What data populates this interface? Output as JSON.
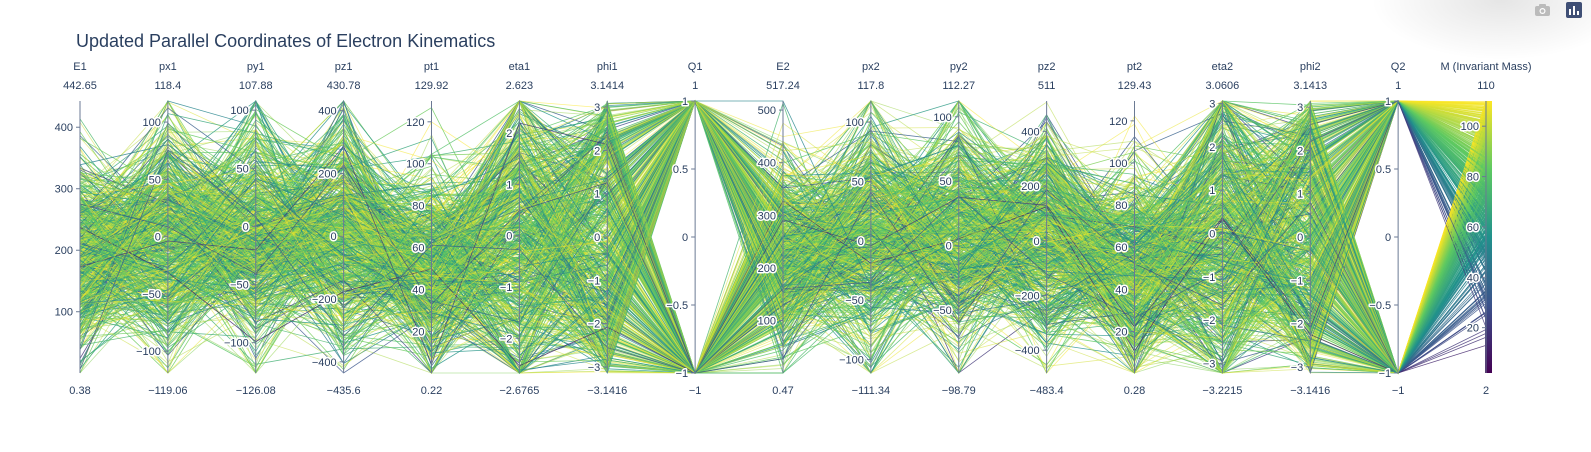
{
  "title": "Updated Parallel Coordinates of Electron Kinematics",
  "modebar": {
    "camera_icon": "camera-icon",
    "logo_icon": "plotly-logo-icon"
  },
  "colorscale": [
    "#440154",
    "#3b528b",
    "#21918c",
    "#5ec962",
    "#fde725"
  ],
  "chart_data": {
    "type": "parallel_coordinates",
    "color_by": "M (Invariant Mass)",
    "dimensions": [
      {
        "label": "E1",
        "range": [
          0.38,
          442.65
        ],
        "ticks": [
          100,
          200,
          300,
          400
        ],
        "min_label": "0.38",
        "max_label": "442.65"
      },
      {
        "label": "px1",
        "range": [
          -119.06,
          118.4
        ],
        "ticks": [
          -100,
          -50,
          0,
          50,
          100
        ],
        "min_label": "−119.06",
        "max_label": "118.4"
      },
      {
        "label": "py1",
        "range": [
          -126.08,
          107.88
        ],
        "ticks": [
          -100,
          -50,
          0,
          50,
          100
        ],
        "min_label": "−126.08",
        "max_label": "107.88"
      },
      {
        "label": "pz1",
        "range": [
          -435.6,
          430.78
        ],
        "ticks": [
          -400,
          -200,
          0,
          200,
          400
        ],
        "min_label": "−435.6",
        "max_label": "430.78"
      },
      {
        "label": "pt1",
        "range": [
          0.22,
          129.92
        ],
        "ticks": [
          20,
          40,
          60,
          80,
          100,
          120
        ],
        "min_label": "0.22",
        "max_label": "129.92"
      },
      {
        "label": "eta1",
        "range": [
          -2.6765,
          2.623
        ],
        "ticks": [
          -2,
          -1,
          0,
          1,
          2
        ],
        "min_label": "−2.6765",
        "max_label": "2.623"
      },
      {
        "label": "phi1",
        "range": [
          -3.1416,
          3.1414
        ],
        "ticks": [
          -3,
          -2,
          -1,
          0,
          1,
          2,
          3
        ],
        "min_label": "−3.1416",
        "max_label": "3.1414"
      },
      {
        "label": "Q1",
        "range": [
          -1,
          1
        ],
        "ticks": [
          -1,
          -0.5,
          0,
          0.5,
          1
        ],
        "min_label": "−1",
        "max_label": "1"
      },
      {
        "label": "E2",
        "range": [
          0.47,
          517.24
        ],
        "ticks": [
          100,
          200,
          300,
          400,
          500
        ],
        "min_label": "0.47",
        "max_label": "517.24"
      },
      {
        "label": "px2",
        "range": [
          -111.34,
          117.8
        ],
        "ticks": [
          -100,
          -50,
          0,
          50,
          100
        ],
        "min_label": "−111.34",
        "max_label": "117.8"
      },
      {
        "label": "py2",
        "range": [
          -98.79,
          112.27
        ],
        "ticks": [
          -50,
          0,
          50,
          100
        ],
        "min_label": "−98.79",
        "max_label": "112.27"
      },
      {
        "label": "pz2",
        "range": [
          -483.4,
          511
        ],
        "ticks": [
          -400,
          -200,
          0,
          200,
          400
        ],
        "min_label": "−483.4",
        "max_label": "511"
      },
      {
        "label": "pt2",
        "range": [
          0.28,
          129.43
        ],
        "ticks": [
          20,
          40,
          60,
          80,
          100,
          120
        ],
        "min_label": "0.28",
        "max_label": "129.43"
      },
      {
        "label": "eta2",
        "range": [
          -3.2215,
          3.0606
        ],
        "ticks": [
          -3,
          -2,
          -1,
          0,
          1,
          2,
          3
        ],
        "min_label": "−3.2215",
        "max_label": "3.0606"
      },
      {
        "label": "phi2",
        "range": [
          -3.1416,
          3.1413
        ],
        "ticks": [
          -3,
          -2,
          -1,
          0,
          1,
          2,
          3
        ],
        "min_label": "−3.1416",
        "max_label": "3.1413"
      },
      {
        "label": "Q2",
        "range": [
          -1,
          1
        ],
        "ticks": [
          -1,
          -0.5,
          0,
          0.5,
          1
        ],
        "min_label": "−1",
        "max_label": "1"
      },
      {
        "label": "M (Invariant Mass)",
        "range": [
          2,
          110
        ],
        "ticks": [
          20,
          40,
          60,
          80,
          100
        ],
        "min_label": "2",
        "max_label": "110"
      }
    ]
  }
}
